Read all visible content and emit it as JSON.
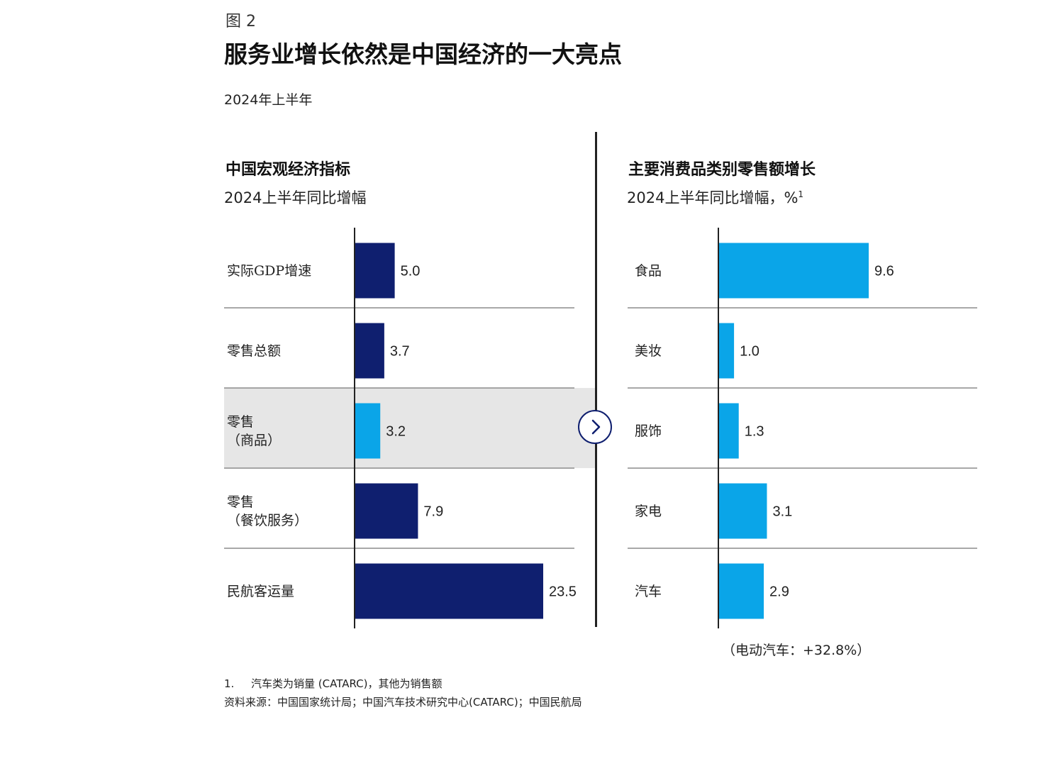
{
  "figure": {
    "label": "图 2",
    "title": "服务业增长依然是中国经济的一大亮点",
    "period": "2024年上半年"
  },
  "left_panel": {
    "title": "中国宏观经济指标",
    "subtitle": "2024上半年同比增幅",
    "highlighted_category_index": 2
  },
  "right_panel": {
    "title": "主要消费品类别零售额增长",
    "subtitle": "2024上半年同比增幅，%",
    "subtitle_footnote_mark": "1",
    "annotation": "（电动汽车：+32.8%）"
  },
  "footnote": {
    "number": "1.",
    "text": "汽车类为销量 (CATARC)，其他为销售额"
  },
  "source": "资料来源：中国国家统计局；中国汽车技术研究中心(CATARC)；中国民航局",
  "icons": {
    "arrow": "chevron-right-icon"
  },
  "colors": {
    "dark_navy": "#0f1f6f",
    "bright_blue": "#0aa5e8",
    "highlight_band": "#e6e6e6",
    "axis": "#222222",
    "separator": "#8c8c8c"
  },
  "chart_data": [
    {
      "type": "bar",
      "orientation": "horizontal",
      "title": "中国宏观经济指标",
      "subtitle": "2024上半年同比增幅",
      "categories": [
        "实际GDP增速",
        "零售总额",
        "零售\n（商品）",
        "零售\n（餐饮服务）",
        "民航客运量"
      ],
      "values": [
        5.0,
        3.7,
        3.2,
        7.9,
        23.5
      ],
      "value_labels": [
        "5.0",
        "3.7",
        "3.2",
        "7.9",
        "23.5"
      ],
      "bar_colors": [
        "#0f1f6f",
        "#0f1f6f",
        "#0aa5e8",
        "#0f1f6f",
        "#0f1f6f"
      ],
      "xlim": [
        0,
        23.5
      ],
      "grid": false
    },
    {
      "type": "bar",
      "orientation": "horizontal",
      "title": "主要消费品类别零售额增长",
      "subtitle": "2024上半年同比增幅，%",
      "categories": [
        "食品",
        "美妆",
        "服饰",
        "家电",
        "汽车"
      ],
      "values": [
        9.6,
        1.0,
        1.3,
        3.1,
        2.9
      ],
      "value_labels": [
        "9.6",
        "1.0",
        "1.3",
        "3.1",
        "2.9"
      ],
      "bar_colors": [
        "#0aa5e8",
        "#0aa5e8",
        "#0aa5e8",
        "#0aa5e8",
        "#0aa5e8"
      ],
      "xlim": [
        0,
        9.6
      ],
      "grid": false
    }
  ]
}
